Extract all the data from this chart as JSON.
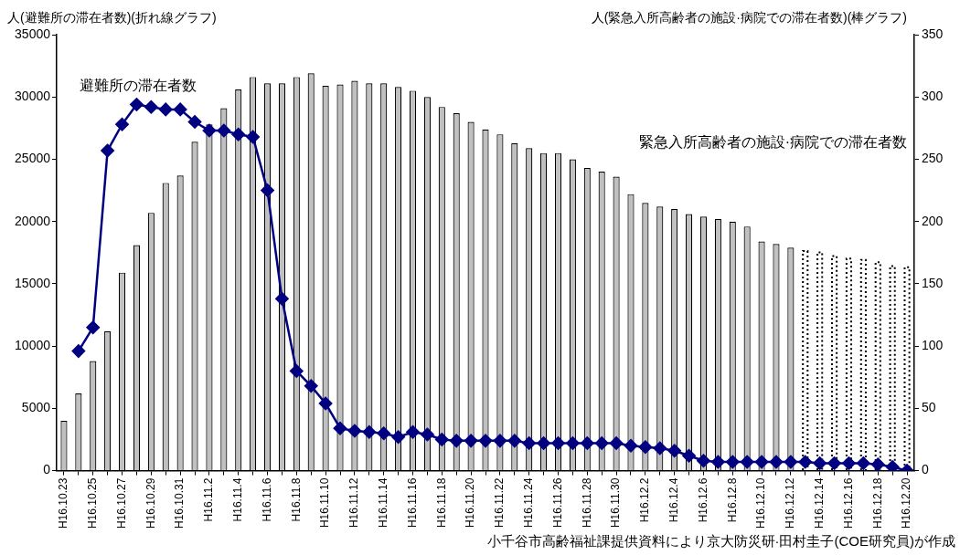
{
  "chart_data": {
    "type": "bar",
    "ylabel": "人(避難所の滞在者数)(折れ線グラフ)",
    "y2label": "人(緊急入所高齢者の施設·病院での滞在者数)(棒グラフ)",
    "categories": [
      "H16.10.23",
      null,
      "H16.10.25",
      null,
      "H16.10.27",
      null,
      "H16.10.29",
      null,
      "H16.10.31",
      null,
      "H16.11.2",
      null,
      "H16.11.4",
      null,
      "H16.11.6",
      null,
      "H16.11.8",
      null,
      "H16.11.10",
      null,
      "H16.11.12",
      null,
      "H16.11.14",
      null,
      "H16.11.16",
      null,
      "H16.11.18",
      null,
      "H16.11.20",
      null,
      "H16.11.22",
      null,
      "H16.11.24",
      null,
      "H16.11.26",
      null,
      "H16.11.28",
      null,
      "H16.11.30",
      null,
      "H16.12.2",
      null,
      "H16.12.4",
      null,
      "H16.12.6",
      null,
      "H16.12.8",
      null,
      "H16.12.10",
      null,
      "H16.12.12",
      null,
      "H16.12.14",
      null,
      "H16.12.16",
      null,
      "H16.12.18",
      null,
      "H16.12.20"
    ],
    "series": [
      {
        "name": "緊急入所高齢者の施設·病院での滞在者数",
        "axis": "y2",
        "color": "#c0c0c0",
        "values": [
          40,
          62,
          88,
          112,
          159,
          181,
          207,
          231,
          237,
          264,
          278,
          291,
          306,
          316,
          311,
          311,
          316,
          319,
          309,
          310,
          313,
          311,
          311,
          308,
          305,
          300,
          292,
          287,
          280,
          274,
          270,
          263,
          259,
          255,
          255,
          250,
          243,
          240,
          236,
          222,
          215,
          212,
          210,
          206,
          204,
          202,
          200,
          196,
          184,
          182,
          179,
          null,
          null,
          null,
          null,
          null,
          null,
          null,
          null
        ]
      },
      {
        "axis": "y2",
        "color": "#ffffff",
        "line_style": "dotted",
        "values": [
          null,
          null,
          null,
          null,
          null,
          null,
          null,
          null,
          null,
          null,
          null,
          null,
          null,
          null,
          null,
          null,
          null,
          null,
          null,
          null,
          null,
          null,
          null,
          null,
          null,
          null,
          null,
          null,
          null,
          null,
          null,
          null,
          null,
          null,
          null,
          null,
          null,
          null,
          null,
          null,
          null,
          null,
          null,
          null,
          null,
          null,
          null,
          null,
          null,
          null,
          null,
          177,
          176,
          173,
          171,
          170,
          168,
          165,
          164
        ]
      },
      {
        "name": "避難所の滞在者数",
        "type": "line",
        "color": "#000080",
        "marker": "diamond",
        "values": [
          null,
          9600,
          11500,
          25700,
          27800,
          29400,
          29200,
          29000,
          29000,
          28000,
          27300,
          27300,
          27000,
          26800,
          22500,
          13800,
          8000,
          6800,
          5400,
          3400,
          3200,
          3100,
          3000,
          2700,
          3100,
          2900,
          2500,
          2400,
          2400,
          2400,
          2400,
          2400,
          2200,
          2200,
          2200,
          2200,
          2200,
          2200,
          2200,
          2000,
          1900,
          1800,
          1600,
          1200,
          800,
          700,
          700,
          700,
          700,
          700,
          700,
          700,
          600,
          600,
          600,
          600,
          500,
          300,
          0
        ]
      }
    ],
    "ylim": [
      0,
      35000
    ],
    "yticks": [
      0,
      5000,
      10000,
      15000,
      20000,
      25000,
      30000,
      35000
    ],
    "y2lim": [
      0,
      350
    ],
    "y2ticks": [
      0,
      50,
      100,
      150,
      200,
      250,
      300,
      350
    ],
    "stacked": true,
    "grid": false,
    "legend": false,
    "annotations": [
      "小千谷市高齢福祉課提供資料により京大防災研·田村圭子(COE研究員)が作成"
    ]
  }
}
